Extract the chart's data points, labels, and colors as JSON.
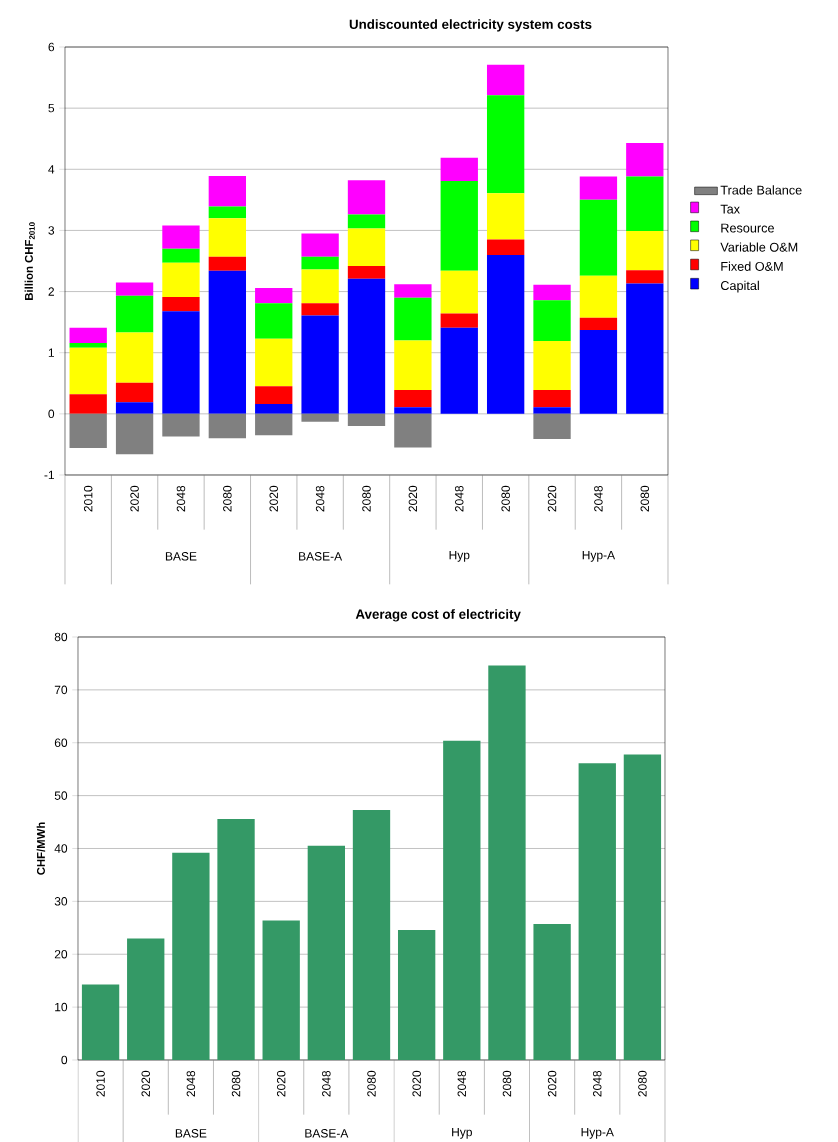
{
  "chart_data": [
    {
      "type": "bar",
      "title": "Undiscounted electricity system costs",
      "ylabel": "Billion CHF$_{2010}$",
      "categories": [
        "2010",
        "2020",
        "2048",
        "2080",
        "2020",
        "2048",
        "2080",
        "2020",
        "2048",
        "2080",
        "2020",
        "2048",
        "2080"
      ],
      "stacked": true,
      "ylim": [
        -1,
        6
      ],
      "yticks": [
        -1,
        0,
        1,
        2,
        3,
        4,
        5,
        6
      ],
      "grid": "y",
      "legend": "right",
      "annotations": [
        "BASE",
        "BASE-A",
        "Hyp",
        "Hyp-A"
      ],
      "series": [
        {
          "name": "Capital",
          "color": "#0000ff",
          "values": [
            0,
            0.19,
            1.68,
            2.34,
            0.16,
            1.61,
            2.21,
            0.11,
            1.41,
            2.6,
            0.11,
            1.37,
            2.13
          ]
        },
        {
          "name": "Fixed O&M",
          "color": "#ff0000",
          "values": [
            0.32,
            0.32,
            0.23,
            0.23,
            0.29,
            0.2,
            0.21,
            0.28,
            0.23,
            0.25,
            0.28,
            0.2,
            0.22
          ]
        },
        {
          "name": "Variable O&M",
          "color": "#ffff00",
          "values": [
            0.76,
            0.82,
            0.56,
            0.63,
            0.78,
            0.55,
            0.61,
            0.81,
            0.7,
            0.76,
            0.8,
            0.69,
            0.64
          ]
        },
        {
          "name": "Resource",
          "color": "#00ff00",
          "values": [
            0.08,
            0.6,
            0.23,
            0.19,
            0.58,
            0.21,
            0.23,
            0.7,
            1.47,
            1.6,
            0.67,
            1.24,
            0.89
          ]
        },
        {
          "name": "Tax",
          "color": "#ff00ff",
          "values": [
            0.25,
            0.22,
            0.38,
            0.5,
            0.25,
            0.38,
            0.56,
            0.22,
            0.38,
            0.5,
            0.25,
            0.38,
            0.55
          ]
        },
        {
          "name": "Trade Balance",
          "color": "#808080",
          "values": [
            -0.56,
            -0.66,
            -0.37,
            -0.4,
            -0.35,
            -0.13,
            -0.2,
            -0.55,
            null,
            null,
            -0.41,
            null,
            null
          ]
        }
      ]
    },
    {
      "type": "bar",
      "title": "Average cost of electricity",
      "ylabel": "CHF/MWh",
      "categories": [
        "2010",
        "2020",
        "2048",
        "2080",
        "2020",
        "2048",
        "2080",
        "2020",
        "2048",
        "2080",
        "2020",
        "2048",
        "2080"
      ],
      "values": [
        14.3,
        23.0,
        39.2,
        45.6,
        26.4,
        40.5,
        47.3,
        24.6,
        60.4,
        74.6,
        25.7,
        56.1,
        57.8
      ],
      "color": "#349966",
      "ylim": [
        0,
        80
      ],
      "yticks": [
        0,
        10,
        20,
        30,
        40,
        50,
        60,
        70,
        80
      ],
      "grid": "y",
      "annotations": [
        "BASE",
        "BASE-A",
        "Hyp",
        "Hyp-A"
      ]
    }
  ]
}
